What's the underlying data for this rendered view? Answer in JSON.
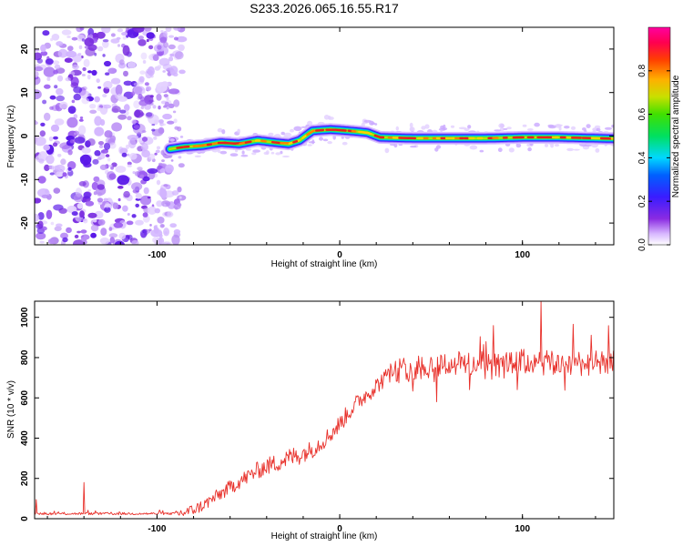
{
  "title": "S233.2026.065.16.55.R17",
  "colors": {
    "background": "#ffffff",
    "snr_line": "#e8302a",
    "ridge_core": "#e82020",
    "speckle": "#8a2be2"
  },
  "chart_data": [
    {
      "type": "heatmap",
      "title": "S233.2026.065.16.55.R17",
      "xlabel": "Height of straight line (km)",
      "ylabel": "Frequency (Hz)",
      "xlim": [
        -167,
        150
      ],
      "ylim": [
        -25,
        25
      ],
      "xticks": [
        -100,
        0,
        100
      ],
      "yticks": [
        20,
        10,
        0,
        -10,
        -20
      ],
      "colorbar": {
        "label": "Normalized spectral amplitude",
        "range": [
          0,
          1
        ],
        "ticks": [
          "0.0",
          "0.2",
          "0.4",
          "0.6",
          "0.8"
        ],
        "tick_values": [
          0.0,
          0.2,
          0.4,
          0.6,
          0.8
        ]
      },
      "noise_region_x": [
        -167,
        -90
      ],
      "ridge": {
        "x": [
          -93,
          -85,
          -75,
          -65,
          -55,
          -45,
          -35,
          -28,
          -22,
          -15,
          -5,
          5,
          15,
          22,
          40,
          60,
          80,
          100,
          120,
          150
        ],
        "y": [
          -3,
          -2.5,
          -2.2,
          -1.5,
          -1.8,
          -1.0,
          -1.5,
          -1.8,
          -1.0,
          1.2,
          1.5,
          1.2,
          0.8,
          -0.3,
          -0.5,
          -0.5,
          -0.5,
          -0.3,
          -0.3,
          -0.6
        ]
      }
    },
    {
      "type": "line",
      "xlabel": "Height of straight line (km)",
      "ylabel": "SNR (10 * v/v)",
      "xlim": [
        -167,
        150
      ],
      "ylim": [
        0,
        1080
      ],
      "xticks": [
        -100,
        0,
        100
      ],
      "yticks": [
        0,
        200,
        400,
        600,
        800,
        1000
      ],
      "trend": {
        "x": [
          -167,
          -140,
          -120,
          -100,
          -90,
          -85,
          -80,
          -75,
          -70,
          -65,
          -60,
          -55,
          -50,
          -45,
          -40,
          -35,
          -30,
          -25,
          -20,
          -15,
          -10,
          -5,
          0,
          5,
          10,
          15,
          20,
          25,
          30,
          35,
          40,
          50,
          60,
          70,
          80,
          90,
          100,
          110,
          120,
          130,
          140,
          150
        ],
        "y": [
          25,
          25,
          25,
          25,
          25,
          30,
          45,
          65,
          95,
          125,
          155,
          185,
          210,
          240,
          260,
          275,
          295,
          310,
          325,
          345,
          380,
          420,
          470,
          530,
          580,
          620,
          660,
          700,
          725,
          740,
          750,
          760,
          770,
          770,
          765,
          760,
          780,
          770,
          770,
          775,
          770,
          770
        ]
      },
      "spikes": [
        {
          "x": -166,
          "y": 95
        },
        {
          "x": -140,
          "y": 180
        },
        {
          "x": 110,
          "y": 1080
        }
      ]
    }
  ]
}
